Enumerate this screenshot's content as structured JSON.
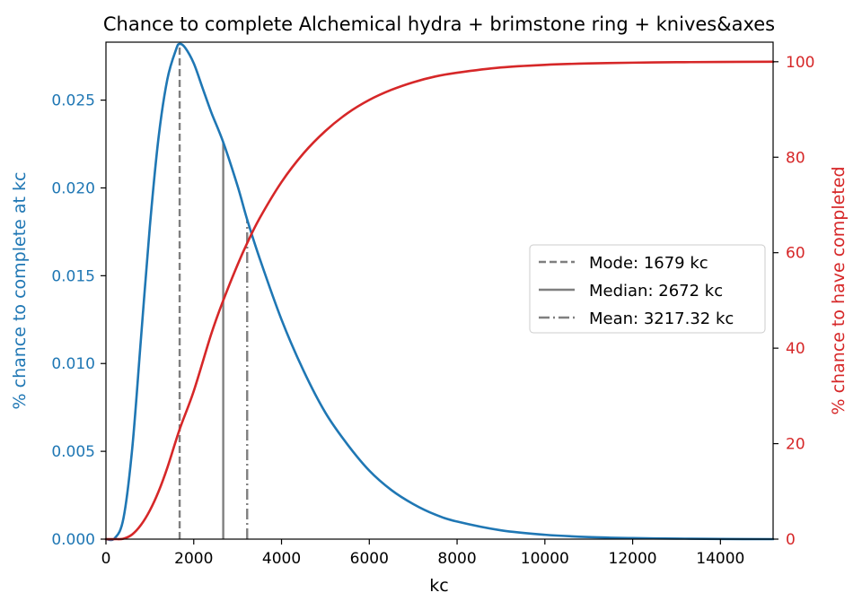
{
  "chart_data": {
    "type": "line",
    "title": "Chance to complete Alchemical hydra + brimstone ring + knives&axes",
    "xlabel": "kc",
    "ylabel_left": "% chance to complete at kc",
    "ylabel_right": "% chance to have completed",
    "xlim": [
      0,
      15200
    ],
    "ylim_left": [
      0,
      0.0283
    ],
    "ylim_right": [
      0,
      104.1
    ],
    "xticks": [
      0,
      2000,
      4000,
      6000,
      8000,
      10000,
      12000,
      14000
    ],
    "xtick_labels": [
      "0",
      "2000",
      "4000",
      "6000",
      "8000",
      "10000",
      "12000",
      "14000"
    ],
    "yticks_left": [
      0.0,
      0.005,
      0.01,
      0.015,
      0.02,
      0.025
    ],
    "ytick_labels_left": [
      "0.000",
      "0.005",
      "0.010",
      "0.015",
      "0.020",
      "0.025"
    ],
    "yticks_right": [
      0,
      20,
      40,
      60,
      80,
      100
    ],
    "ytick_labels_right": [
      "0",
      "20",
      "40",
      "60",
      "80",
      "100"
    ],
    "series": [
      {
        "axis": "left",
        "color": "#1f77b4",
        "x": [
          0,
          200,
          400,
          600,
          800,
          1000,
          1200,
          1400,
          1600,
          1679,
          1800,
          2000,
          2200,
          2400,
          2672,
          3000,
          3217,
          3500,
          4000,
          4500,
          5000,
          5500,
          6000,
          6500,
          7000,
          7500,
          8000,
          9000,
          10000,
          11000,
          12000,
          13000,
          14000,
          15200
        ],
        "values": [
          0.0,
          5e-05,
          0.0012,
          0.0052,
          0.0115,
          0.0178,
          0.0229,
          0.0262,
          0.0279,
          0.0282,
          0.028,
          0.0271,
          0.0257,
          0.0243,
          0.0226,
          0.0201,
          0.0182,
          0.016,
          0.0125,
          0.0096,
          0.0072,
          0.0054,
          0.0039,
          0.0028,
          0.002,
          0.0014,
          0.001,
          0.0005,
          0.00025,
          0.00012,
          6e-05,
          3e-05,
          1e-05,
          0.0
        ]
      },
      {
        "axis": "right",
        "color": "#d62728",
        "x": [
          0,
          200,
          400,
          600,
          800,
          1000,
          1200,
          1400,
          1679,
          2000,
          2400,
          2672,
          3000,
          3217,
          3500,
          4000,
          4500,
          5000,
          5500,
          6000,
          6500,
          7000,
          7500,
          8000,
          9000,
          10000,
          11000,
          12000,
          13000,
          14000,
          15200
        ],
        "values": [
          0,
          0,
          0.1,
          1,
          3,
          6,
          10,
          15,
          23,
          31,
          43,
          50,
          57.5,
          62,
          67.2,
          74.8,
          80.8,
          85.5,
          89.2,
          92,
          94.1,
          95.7,
          96.9,
          97.7,
          98.8,
          99.35,
          99.65,
          99.8,
          99.9,
          99.95,
          100
        ]
      }
    ],
    "vlines": [
      {
        "name": "Mode: 1679 kc",
        "x": 1679,
        "style": "dashed",
        "ytop": 0.0282
      },
      {
        "name": "Median: 2672 kc",
        "x": 2672,
        "style": "solid",
        "ytop": 0.0226
      },
      {
        "name": "Mean: 3217.32 kc",
        "x": 3217.32,
        "style": "dashdot",
        "ytop": 0.0182
      }
    ],
    "vline_color": "#7f7f7f",
    "left_axis_color": "#1f77b4",
    "right_axis_color": "#d62728",
    "legend_position": "center-right",
    "grid": false
  }
}
